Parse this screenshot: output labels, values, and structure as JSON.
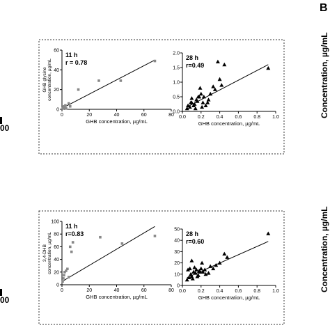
{
  "edge": {
    "top_label": "00",
    "bottom_label": "00",
    "right_panel_letter": "B",
    "right_top_label_line1": "Concentration, µg/mL",
    "right_top_label_line2": "... ..",
    "right_bottom_label_line1": "Concentration, µg/mL",
    "right_bottom_label_line2": "... ..."
  },
  "chart_data": [
    {
      "type": "scatter",
      "title": "",
      "annotation_line1": "11 h",
      "annotation_line2": "r = 0.78",
      "xlabel": "GHB concentration, µg/mL",
      "ylabel_line1": "GHB glycine",
      "ylabel_line2": "concentration, µg/mL",
      "xlim": [
        0,
        80
      ],
      "ylim": [
        0,
        60
      ],
      "xticks": [
        "0",
        "20",
        "40",
        "60",
        "80"
      ],
      "yticks": [
        "0",
        "20",
        "40",
        "60"
      ],
      "marker": "square",
      "x": [
        0.5,
        1,
        1.5,
        2,
        2.5,
        3,
        5,
        6,
        12,
        27,
        43,
        68
      ],
      "y": [
        1,
        2,
        3,
        2,
        4,
        1,
        6,
        3,
        20,
        29,
        29,
        49
      ],
      "fit": {
        "x": [
          0,
          68
        ],
        "y": [
          1,
          50
        ]
      }
    },
    {
      "type": "scatter",
      "title": "",
      "annotation_line1": "28 h",
      "annotation_line2": "r=0.49",
      "xlabel": "GHB concentration, µg/mL",
      "ylabel_line1": "",
      "ylabel_line2": "",
      "xlim": [
        0,
        1.0
      ],
      "ylim": [
        0,
        2.0
      ],
      "xticks": [
        "0.0",
        "0.2",
        "0.4",
        "0.6",
        "0.8",
        "1.0"
      ],
      "yticks": [
        "0.0",
        "0.5",
        "1.0",
        "1.5",
        "2.0"
      ],
      "marker": "triangle",
      "x": [
        0.05,
        0.08,
        0.1,
        0.12,
        0.15,
        0.18,
        0.2,
        0.22,
        0.25,
        0.1,
        0.13,
        0.16,
        0.19,
        0.23,
        0.28,
        0.3,
        0.35,
        0.4,
        0.42,
        0.45,
        0.06,
        0.09,
        0.14,
        0.17,
        0.21,
        0.27,
        0.33,
        0.38,
        0.92
      ],
      "y": [
        0.1,
        0.15,
        0.3,
        0.2,
        0.4,
        0.5,
        0.6,
        0.3,
        0.2,
        0.45,
        0.25,
        0.35,
        0.8,
        0.5,
        0.4,
        0.6,
        0.75,
        1.1,
        0.9,
        1.6,
        0.2,
        0.3,
        0.1,
        0.5,
        0.15,
        0.3,
        0.85,
        1.7,
        1.48
      ],
      "fit": {
        "x": [
          0.05,
          0.92
        ],
        "y": [
          0.15,
          1.6
        ]
      }
    },
    {
      "type": "scatter",
      "title": "",
      "annotation_line1": "11 h",
      "annotation_line2": "r=0.83",
      "xlabel": "GHB concentration, µg/mL",
      "ylabel_line1": "3,4-DHB",
      "ylabel_line2": "concentration, µg/mL",
      "xlim": [
        0,
        80
      ],
      "ylim": [
        0,
        100
      ],
      "xticks": [
        "0",
        "20",
        "40",
        "60",
        "80"
      ],
      "yticks": [
        "0",
        "20",
        "40",
        "60",
        "80",
        "100"
      ],
      "marker": "square",
      "x": [
        0.5,
        1,
        1.5,
        2,
        3,
        4,
        5,
        6,
        7,
        8,
        28,
        44,
        68
      ],
      "y": [
        5,
        10,
        15,
        20,
        22,
        25,
        12,
        60,
        52,
        67,
        75,
        65,
        77
      ],
      "fit": {
        "x": [
          0,
          68
        ],
        "y": [
          5,
          92
        ]
      }
    },
    {
      "type": "scatter",
      "title": "",
      "annotation_line1": "28 h",
      "annotation_line2": "r=0.60",
      "xlabel": "GHB concentration, µg/mL",
      "ylabel_line1": "",
      "ylabel_line2": "",
      "xlim": [
        0,
        1.0
      ],
      "ylim": [
        0,
        50
      ],
      "xticks": [
        "0.0",
        "0.2",
        "0.4",
        "0.6",
        "0.8",
        "1.0"
      ],
      "yticks": [
        "0",
        "10",
        "20",
        "30",
        "40",
        "50"
      ],
      "marker": "triangle",
      "x": [
        0.05,
        0.07,
        0.09,
        0.1,
        0.12,
        0.14,
        0.15,
        0.17,
        0.18,
        0.2,
        0.22,
        0.25,
        0.06,
        0.08,
        0.11,
        0.13,
        0.16,
        0.19,
        0.21,
        0.24,
        0.28,
        0.3,
        0.33,
        0.36,
        0.4,
        0.45,
        0.48,
        0.1,
        0.92
      ],
      "y": [
        5,
        7,
        10,
        8,
        12,
        11,
        14,
        9,
        13,
        15,
        12,
        10,
        14,
        15,
        6,
        16,
        8,
        12,
        20,
        14,
        11,
        17,
        15,
        18,
        20,
        28,
        25,
        22,
        46
      ],
      "fit": {
        "x": [
          0.05,
          0.92
        ],
        "y": [
          7,
          39
        ]
      }
    }
  ]
}
